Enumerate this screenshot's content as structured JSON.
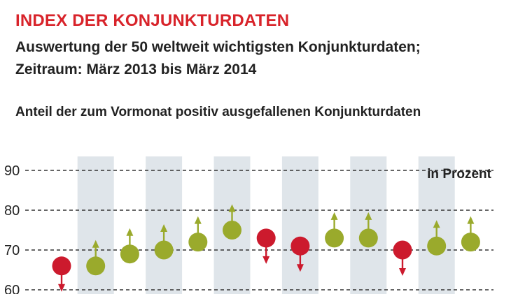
{
  "header": {
    "title": "INDEX DER KONJUNKTURDATEN",
    "subtitle_line1": "Auswertung der 50 weltweit wichtigsten Konjunkturdaten;",
    "subtitle_line2": "Zeitraum: März 2013 bis März 2014",
    "caption": "Anteil der zum Vormonat positiv ausgefallenen Konjunkturdaten"
  },
  "colors": {
    "up": "#9aaa2c",
    "down": "#cc1a2d",
    "band": "#dfe5ea",
    "grid": "#333333",
    "title": "#d8232a"
  },
  "chart_data": {
    "type": "scatter",
    "title": "",
    "unit_label": "in Prozent",
    "yticks": [
      60,
      70,
      80,
      90
    ],
    "ylim": [
      60,
      90
    ],
    "grid": true,
    "alternating_bands": true,
    "series": [
      {
        "values": [
          66,
          66,
          69,
          70,
          72,
          75,
          73,
          71,
          73,
          73,
          70,
          71,
          72
        ],
        "direction": [
          "down",
          "up",
          "up",
          "up",
          "up",
          "up",
          "down",
          "down",
          "up",
          "up",
          "down",
          "up",
          "up"
        ]
      }
    ]
  }
}
